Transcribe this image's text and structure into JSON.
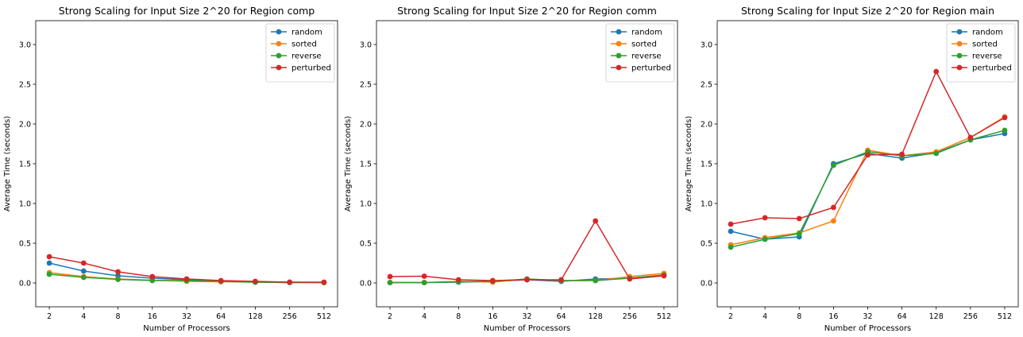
{
  "colors": {
    "random": "#1f77b4",
    "sorted": "#ff7f0e",
    "reverse": "#2ca02c",
    "perturbed": "#d62728",
    "axis": "#000000",
    "legend_border": "#cccccc"
  },
  "chart_data": [
    {
      "type": "line",
      "title": "Strong Scaling for Input Size 2^20 for Region comp",
      "xlabel": "Number of Processors",
      "ylabel": "Average Time (seconds)",
      "categories": [
        "2",
        "4",
        "8",
        "16",
        "32",
        "64",
        "128",
        "256",
        "512"
      ],
      "yticks": [
        "0.0",
        "0.5",
        "1.0",
        "1.5",
        "2.0",
        "2.5",
        "3.0"
      ],
      "ylim": [
        -0.3,
        3.3
      ],
      "grid": false,
      "legend_position": "top-right",
      "series": [
        {
          "name": "random",
          "values": [
            0.25,
            0.15,
            0.09,
            0.06,
            0.04,
            0.02,
            0.015,
            0.01,
            0.005
          ]
        },
        {
          "name": "sorted",
          "values": [
            0.13,
            0.08,
            0.05,
            0.035,
            0.02,
            0.015,
            0.01,
            0.005,
            0.005
          ]
        },
        {
          "name": "reverse",
          "values": [
            0.11,
            0.07,
            0.045,
            0.03,
            0.03,
            0.02,
            0.01,
            0.005,
            0.005
          ]
        },
        {
          "name": "perturbed",
          "values": [
            0.33,
            0.25,
            0.14,
            0.08,
            0.05,
            0.03,
            0.02,
            0.01,
            0.01
          ]
        }
      ]
    },
    {
      "type": "line",
      "title": "Strong Scaling for Input Size 2^20 for Region comm",
      "xlabel": "Number of Processors",
      "ylabel": "Average Time (seconds)",
      "categories": [
        "2",
        "4",
        "8",
        "16",
        "32",
        "64",
        "128",
        "256",
        "512"
      ],
      "yticks": [
        "0.0",
        "0.5",
        "1.0",
        "1.5",
        "2.0",
        "2.5",
        "3.0"
      ],
      "ylim": [
        -0.3,
        3.3
      ],
      "grid": false,
      "legend_position": "top-right",
      "series": [
        {
          "name": "random",
          "values": [
            0.005,
            0.005,
            0.01,
            0.02,
            0.04,
            0.02,
            0.05,
            0.06,
            0.1
          ]
        },
        {
          "name": "sorted",
          "values": [
            0.005,
            0.005,
            0.02,
            0.01,
            0.05,
            0.03,
            0.03,
            0.08,
            0.12
          ]
        },
        {
          "name": "reverse",
          "values": [
            0.005,
            0.005,
            0.015,
            0.02,
            0.05,
            0.03,
            0.03,
            0.06,
            0.1
          ]
        },
        {
          "name": "perturbed",
          "values": [
            0.08,
            0.085,
            0.04,
            0.03,
            0.04,
            0.04,
            0.78,
            0.05,
            0.09
          ]
        }
      ]
    },
    {
      "type": "line",
      "title": "Strong Scaling for Input Size 2^20 for Region main",
      "xlabel": "Number of Processors",
      "ylabel": "Average Time (seconds)",
      "categories": [
        "2",
        "4",
        "8",
        "16",
        "32",
        "64",
        "128",
        "256",
        "512"
      ],
      "yticks": [
        "0.0",
        "0.5",
        "1.0",
        "1.5",
        "2.0",
        "2.5",
        "3.0"
      ],
      "ylim": [
        -0.3,
        3.3
      ],
      "grid": false,
      "legend_position": "top-right",
      "series": [
        {
          "name": "random",
          "values": [
            0.65,
            0.55,
            0.58,
            1.5,
            1.63,
            1.57,
            1.64,
            1.8,
            1.88
          ]
        },
        {
          "name": "sorted",
          "values": [
            0.48,
            0.57,
            0.63,
            0.78,
            1.67,
            1.6,
            1.65,
            1.83,
            2.09
          ]
        },
        {
          "name": "reverse",
          "values": [
            0.45,
            0.55,
            0.62,
            1.48,
            1.65,
            1.6,
            1.63,
            1.8,
            1.92
          ]
        },
        {
          "name": "perturbed",
          "values": [
            0.74,
            0.82,
            0.81,
            0.95,
            1.61,
            1.62,
            2.66,
            1.83,
            2.08
          ]
        }
      ]
    }
  ]
}
